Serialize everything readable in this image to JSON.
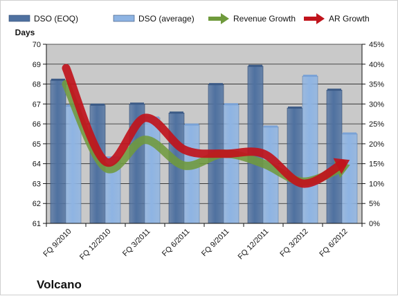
{
  "colors": {
    "plot_bg": "#c9c9c9",
    "gridline": "#222222",
    "dso_eoq": "#4f71a0",
    "dso_average": "#8eb4e3",
    "revenue_growth": "#6f9a3c",
    "ar_growth": "#c0141c"
  },
  "chart_data": {
    "type": "bar",
    "title": "Volcano",
    "ylabel": "Days",
    "categories": [
      "FQ 9/2010",
      "FQ 12/2010",
      "FQ 3/2011",
      "FQ 6/2011",
      "FQ 9/2011",
      "FQ 12/2011",
      "FQ 3/2012",
      "FQ 6/2012"
    ],
    "ylim": [
      61,
      70
    ],
    "yticks": [
      "61",
      "62",
      "63",
      "64",
      "65",
      "66",
      "67",
      "68",
      "69",
      "70"
    ],
    "y2lim": [
      0,
      45
    ],
    "y2ticks": [
      "0%",
      "5%",
      "10%",
      "15%",
      "20%",
      "25%",
      "30%",
      "35%",
      "40%",
      "45%"
    ],
    "grid": true,
    "legend_position": "top",
    "series": [
      {
        "name": "DSO (EOQ)",
        "kind": "bar",
        "axis": "left",
        "values": [
          68.2,
          66.95,
          67.0,
          66.55,
          67.98,
          68.9,
          66.8,
          67.7
        ]
      },
      {
        "name": "DSO (average)",
        "kind": "bar",
        "axis": "left",
        "values": [
          66.9,
          64.3,
          66.3,
          65.95,
          66.97,
          65.85,
          68.4,
          65.5
        ]
      },
      {
        "name": "Revenue Growth",
        "kind": "line-arrow",
        "axis": "right",
        "values": [
          35,
          14,
          21,
          14.5,
          17.5,
          15,
          10.5,
          14
        ]
      },
      {
        "name": "AR Growth",
        "kind": "line-arrow",
        "axis": "right",
        "values": [
          39,
          15.5,
          26.5,
          18.5,
          17.5,
          17.5,
          10,
          15
        ]
      }
    ]
  }
}
